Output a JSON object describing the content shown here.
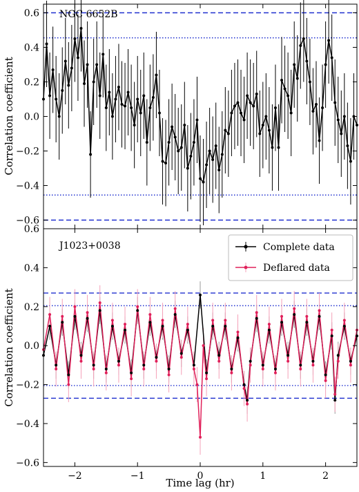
{
  "chart_data": [
    {
      "type": "line",
      "annotation": "NGC 6652B",
      "xlabel": "",
      "ylabel": "Correlation coefficient",
      "xlim": [
        -2.5,
        2.5
      ],
      "ylim": [
        -0.65,
        0.65
      ],
      "yticks": [
        -0.6,
        -0.4,
        -0.2,
        0.0,
        0.2,
        0.4,
        0.6
      ],
      "ytick_labels": [
        "−0.6",
        "−0.4",
        "−0.2",
        "0.0",
        "0.2",
        "0.4",
        "0.6"
      ],
      "xticks": [
        -2,
        -1,
        0,
        1,
        2
      ],
      "xtick_labels": [],
      "grid": false,
      "reference_lines": [
        {
          "style": "dashed",
          "values": [
            0.6,
            -0.6
          ],
          "color": "#1f2fcf"
        },
        {
          "style": "dotted",
          "values": [
            0.455,
            -0.455
          ],
          "color": "#1f2fcf"
        }
      ],
      "series": [
        {
          "color": "#000000",
          "error_color": "#000000",
          "x": [
            -2.5,
            -2.45,
            -2.4,
            -2.35,
            -2.3,
            -2.25,
            -2.2,
            -2.15,
            -2.1,
            -2.05,
            -2.0,
            -1.95,
            -1.9,
            -1.85,
            -1.8,
            -1.75,
            -1.7,
            -1.65,
            -1.6,
            -1.55,
            -1.5,
            -1.45,
            -1.4,
            -1.35,
            -1.3,
            -1.25,
            -1.2,
            -1.15,
            -1.1,
            -1.05,
            -1.0,
            -0.95,
            -0.9,
            -0.85,
            -0.8,
            -0.75,
            -0.7,
            -0.65,
            -0.6,
            -0.55,
            -0.5,
            -0.45,
            -0.4,
            -0.35,
            -0.3,
            -0.25,
            -0.2,
            -0.15,
            -0.1,
            -0.05,
            0.0,
            0.05,
            0.1,
            0.15,
            0.2,
            0.25,
            0.3,
            0.35,
            0.4,
            0.45,
            0.5,
            0.55,
            0.6,
            0.65,
            0.7,
            0.75,
            0.8,
            0.85,
            0.9,
            0.95,
            1.0,
            1.05,
            1.1,
            1.15,
            1.2,
            1.25,
            1.3,
            1.35,
            1.4,
            1.45,
            1.5,
            1.55,
            1.6,
            1.65,
            1.7,
            1.75,
            1.8,
            1.85,
            1.9,
            1.95,
            2.0,
            2.05,
            2.1,
            2.15,
            2.2,
            2.25,
            2.3,
            2.35,
            2.4,
            2.45,
            2.5
          ],
          "values": [
            0.1,
            0.42,
            0.12,
            0.27,
            0.1,
            0.0,
            0.15,
            0.32,
            0.18,
            0.28,
            0.45,
            0.34,
            0.51,
            0.19,
            0.3,
            -0.22,
            0.2,
            0.3,
            0.12,
            0.36,
            0.05,
            0.14,
            0.0,
            0.1,
            0.17,
            0.07,
            0.06,
            0.14,
            0.05,
            -0.05,
            0.1,
            0.02,
            0.12,
            -0.15,
            0.05,
            0.11,
            0.24,
            0.02,
            -0.26,
            -0.27,
            -0.15,
            -0.06,
            -0.12,
            -0.2,
            -0.18,
            -0.05,
            -0.3,
            -0.23,
            -0.15,
            -0.02,
            -0.36,
            -0.38,
            -0.28,
            -0.2,
            -0.25,
            -0.17,
            -0.31,
            -0.22,
            -0.08,
            -0.1,
            0.02,
            0.06,
            0.08,
            0.02,
            -0.02,
            0.12,
            0.08,
            0.06,
            0.13,
            -0.1,
            -0.05,
            0.0,
            -0.08,
            -0.18,
            0.05,
            -0.18,
            0.21,
            0.16,
            0.12,
            0.02,
            0.3,
            0.22,
            0.41,
            0.45,
            0.32,
            0.2,
            0.03,
            0.07,
            -0.14,
            0.05,
            0.3,
            0.44,
            0.34,
            0.08,
            -0.02,
            -0.1,
            0.0,
            -0.17,
            -0.26,
            0.0,
            -0.05
          ],
          "errors": 0.25
        }
      ]
    },
    {
      "type": "line",
      "annotation": "J1023+0038",
      "xlabel": "Time lag (hr)",
      "ylabel": "Correlation coefficient",
      "xlim": [
        -2.5,
        2.5
      ],
      "ylim": [
        -0.62,
        0.6
      ],
      "yticks": [
        -0.6,
        -0.4,
        -0.2,
        0.0,
        0.2,
        0.4,
        0.6
      ],
      "ytick_labels": [
        "−0.6",
        "−0.4",
        "−0.2",
        "0.0",
        "0.2",
        "0.4",
        "0.6"
      ],
      "xticks": [
        -2,
        -1,
        0,
        1,
        2
      ],
      "xtick_labels": [
        "−2",
        "−1",
        "0",
        "1",
        "2"
      ],
      "grid": false,
      "legend_position": "top-right",
      "reference_lines": [
        {
          "style": "dashed",
          "values": [
            0.27,
            -0.27
          ],
          "color": "#1f2fcf"
        },
        {
          "style": "dotted",
          "values": [
            0.205,
            -0.205
          ],
          "color": "#1f2fcf"
        }
      ],
      "series": [
        {
          "name": "Complete data",
          "color": "#000000",
          "error_color": "#9a9a9a",
          "x": [
            -2.5,
            -2.4,
            -2.3,
            -2.2,
            -2.1,
            -2.0,
            -1.9,
            -1.8,
            -1.7,
            -1.6,
            -1.5,
            -1.4,
            -1.3,
            -1.2,
            -1.1,
            -1.0,
            -0.9,
            -0.8,
            -0.7,
            -0.6,
            -0.5,
            -0.4,
            -0.3,
            -0.2,
            -0.1,
            0.0,
            0.1,
            0.2,
            0.3,
            0.4,
            0.5,
            0.6,
            0.7,
            0.75,
            0.8,
            0.9,
            1.0,
            1.1,
            1.2,
            1.3,
            1.4,
            1.5,
            1.6,
            1.7,
            1.8,
            1.9,
            2.0,
            2.1,
            2.15,
            2.2,
            2.3,
            2.4,
            2.5
          ],
          "values": [
            -0.05,
            0.1,
            -0.1,
            0.12,
            -0.15,
            0.15,
            -0.05,
            0.14,
            -0.1,
            0.18,
            -0.12,
            0.1,
            -0.08,
            0.08,
            -0.14,
            0.18,
            -0.1,
            0.12,
            -0.06,
            0.1,
            -0.12,
            0.16,
            -0.04,
            0.08,
            -0.1,
            0.26,
            -0.14,
            0.1,
            -0.05,
            0.1,
            -0.12,
            0.04,
            -0.2,
            -0.28,
            -0.08,
            0.14,
            -0.1,
            0.08,
            -0.12,
            0.12,
            -0.05,
            0.16,
            -0.1,
            0.12,
            -0.08,
            0.15,
            -0.15,
            0.05,
            -0.28,
            -0.05,
            0.1,
            -0.08,
            0.05
          ],
          "errors": 0.07
        },
        {
          "name": "Deflared data",
          "color": "#e0205a",
          "error_color": "#f5a0b8",
          "x": [
            -2.5,
            -2.4,
            -2.3,
            -2.2,
            -2.1,
            -2.0,
            -1.9,
            -1.8,
            -1.7,
            -1.6,
            -1.5,
            -1.4,
            -1.3,
            -1.2,
            -1.1,
            -1.0,
            -0.9,
            -0.8,
            -0.7,
            -0.6,
            -0.5,
            -0.4,
            -0.3,
            -0.2,
            -0.1,
            -0.05,
            0.0,
            0.05,
            0.1,
            0.2,
            0.3,
            0.4,
            0.5,
            0.6,
            0.7,
            0.75,
            0.8,
            0.9,
            1.0,
            1.1,
            1.2,
            1.3,
            1.4,
            1.5,
            1.6,
            1.7,
            1.8,
            1.9,
            2.0,
            2.1,
            2.15,
            2.2,
            2.3,
            2.4,
            2.5
          ],
          "values": [
            -0.02,
            0.16,
            -0.12,
            0.15,
            -0.2,
            0.2,
            -0.08,
            0.17,
            -0.12,
            0.22,
            -0.14,
            0.13,
            -0.1,
            0.11,
            -0.17,
            0.2,
            -0.12,
            0.16,
            -0.08,
            0.13,
            -0.15,
            0.19,
            -0.06,
            0.11,
            -0.12,
            -0.2,
            -0.47,
            0.0,
            -0.17,
            0.13,
            -0.08,
            0.13,
            -0.14,
            0.07,
            -0.22,
            -0.3,
            -0.1,
            0.17,
            -0.12,
            0.11,
            -0.14,
            0.15,
            -0.08,
            0.19,
            -0.12,
            0.15,
            -0.1,
            0.18,
            -0.18,
            0.08,
            -0.25,
            -0.08,
            0.13,
            -0.1,
            0.08
          ],
          "errors": 0.09
        }
      ]
    }
  ]
}
